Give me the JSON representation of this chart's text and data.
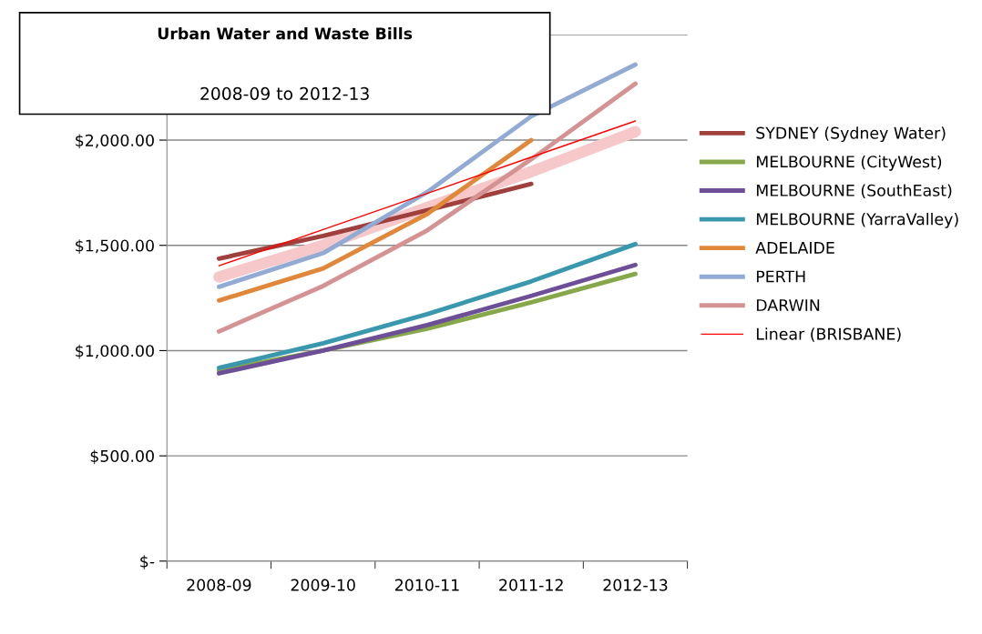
{
  "chart_data": {
    "type": "line",
    "title": "Urban Water and Waste Bills",
    "subtitle": "2008-09 to 2012-13",
    "categories": [
      "2008-09",
      "2009-10",
      "2010-11",
      "2011-12",
      "2012-13"
    ],
    "ylim": [
      0,
      2500
    ],
    "yticks": [
      {
        "value": 0,
        "label": "$-"
      },
      {
        "value": 500,
        "label": "$500.00"
      },
      {
        "value": 1000,
        "label": "$1,000.00"
      },
      {
        "value": 1500,
        "label": "$1,500.00"
      },
      {
        "value": 2000,
        "label": "$2,000.00"
      },
      {
        "value": 2500,
        "label": null
      }
    ],
    "grid": "y",
    "legend": "right",
    "marker": "none",
    "line_style": "solid",
    "series": [
      {
        "color": "#f6c8ca",
        "values": [
          1350,
          1500,
          1680,
          1850,
          2040
        ]
      },
      {
        "name": "SYDNEY (Sydney Water)",
        "color": "#a0403c",
        "values": [
          1437,
          1545,
          1667,
          1792,
          null
        ]
      },
      {
        "name": "MELBOURNE (CityWest)",
        "color": "#86a84a",
        "values": [
          905,
          1000,
          1104,
          1229,
          1364
        ]
      },
      {
        "name": "MELBOURNE (SouthEast)",
        "color": "#6c4f96",
        "values": [
          892,
          1000,
          1121,
          1260,
          1407
        ]
      },
      {
        "name": "MELBOURNE (YarraValley)",
        "color": "#3a98ae",
        "values": [
          918,
          1035,
          1173,
          1329,
          1506
        ]
      },
      {
        "name": "ADELAIDE",
        "color": "#e0873a",
        "values": [
          1238,
          1390,
          1649,
          2000,
          null
        ]
      },
      {
        "name": "PERTH",
        "color": "#92abd4",
        "values": [
          1303,
          1463,
          1753,
          2113,
          2359
        ]
      },
      {
        "name": "DARWIN",
        "color": "#d49292",
        "values": [
          1091,
          1307,
          1571,
          1909,
          2268
        ]
      },
      {
        "name": "Linear (BRISBANE)",
        "color": "#ff0000",
        "values": [
          1403,
          1575,
          1747,
          1919,
          2091
        ]
      }
    ]
  }
}
